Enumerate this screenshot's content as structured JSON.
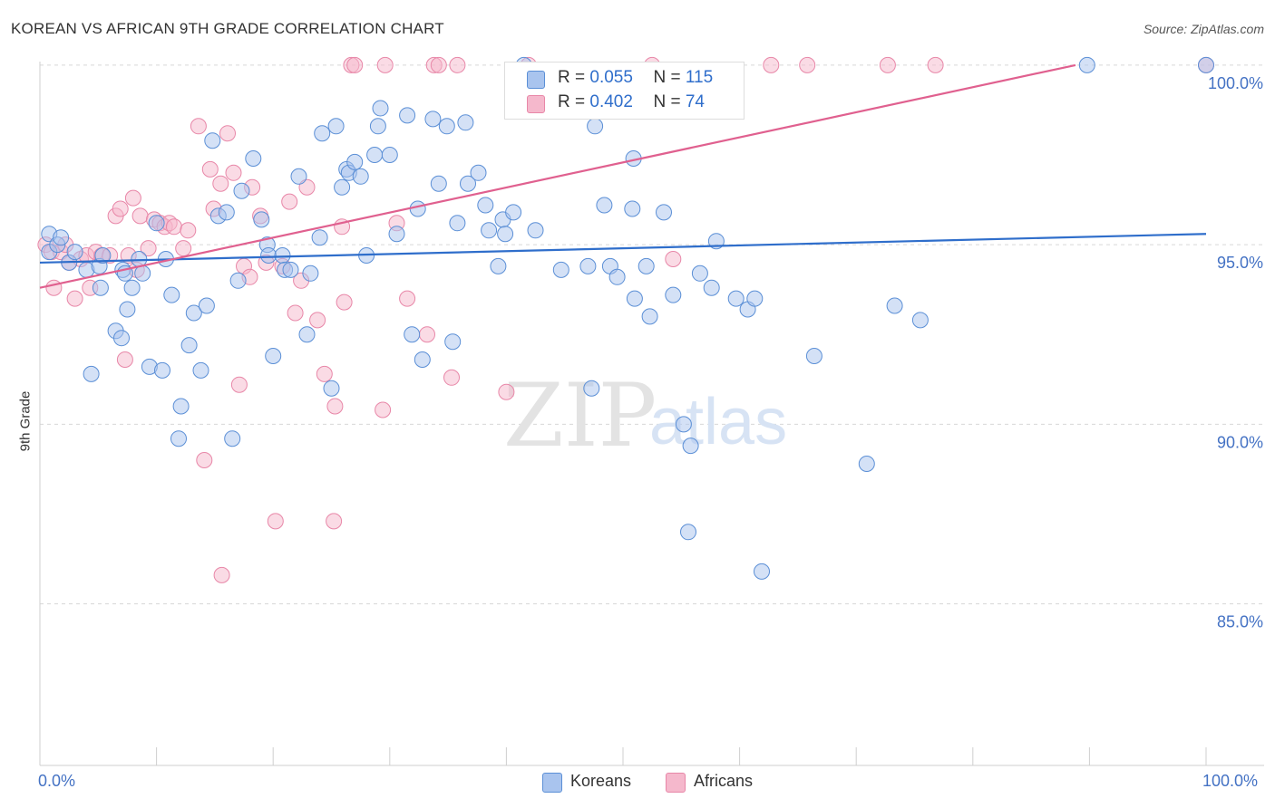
{
  "title": "KOREAN VS AFRICAN 9TH GRADE CORRELATION CHART",
  "source": "Source: ZipAtlas.com",
  "watermark": {
    "zip": "ZIP",
    "atlas": "atlas"
  },
  "legend": {
    "rows": [
      {
        "r_label": "R = ",
        "r_value": "0.055",
        "n_label": "N = ",
        "n_value": "115"
      },
      {
        "r_label": "R = ",
        "r_value": "0.402",
        "n_label": "N = ",
        "n_value": "74"
      }
    ]
  },
  "bottom_legend": [
    "Koreans",
    "Africans"
  ],
  "colors": {
    "koreans_fill": "#a9c4ee",
    "koreans_stroke": "#5b8fd6",
    "koreans_line": "#2f6ecb",
    "africans_fill": "#f5b8cc",
    "africans_stroke": "#e887a8",
    "africans_line": "#e0608f",
    "axis_text": "#4472c4",
    "grid": "#d8d8d8"
  },
  "chart_data": {
    "type": "scatter",
    "title": "KOREAN VS AFRICAN 9TH GRADE CORRELATION CHART",
    "xlabel": "",
    "ylabel": "9th Grade",
    "xlim": [
      0,
      100
    ],
    "ylim": [
      80.5,
      100.3
    ],
    "x_tick_labels": [
      "0.0%",
      "100.0%"
    ],
    "y_ticks": [
      85,
      90,
      95,
      100
    ],
    "y_tick_labels": [
      "85.0%",
      "90.0%",
      "95.0%",
      "100.0%"
    ],
    "grid": true,
    "legend_position": "top-center",
    "series": [
      {
        "name": "Koreans",
        "R": 0.055,
        "N": 115,
        "trend": {
          "x": [
            0,
            100
          ],
          "y": [
            94.5,
            95.3
          ]
        },
        "points": [
          [
            0.8,
            95.3
          ],
          [
            0.8,
            94.8
          ],
          [
            1.5,
            95.0
          ],
          [
            1.8,
            95.2
          ],
          [
            2.5,
            94.5
          ],
          [
            3.0,
            94.8
          ],
          [
            4.0,
            94.3
          ],
          [
            4.4,
            91.4
          ],
          [
            5.1,
            94.4
          ],
          [
            5.2,
            93.8
          ],
          [
            5.4,
            94.7
          ],
          [
            6.5,
            92.6
          ],
          [
            7.0,
            92.4
          ],
          [
            7.1,
            94.3
          ],
          [
            7.3,
            94.2
          ],
          [
            7.5,
            93.2
          ],
          [
            7.9,
            93.8
          ],
          [
            8.5,
            94.6
          ],
          [
            8.8,
            94.2
          ],
          [
            9.4,
            91.6
          ],
          [
            10.0,
            95.6
          ],
          [
            10.5,
            91.5
          ],
          [
            10.8,
            94.6
          ],
          [
            11.3,
            93.6
          ],
          [
            11.9,
            89.6
          ],
          [
            12.1,
            90.5
          ],
          [
            12.8,
            92.2
          ],
          [
            13.2,
            93.1
          ],
          [
            13.8,
            91.5
          ],
          [
            14.3,
            93.3
          ],
          [
            14.8,
            97.9
          ],
          [
            15.3,
            95.8
          ],
          [
            16.0,
            95.9
          ],
          [
            16.5,
            89.6
          ],
          [
            17.0,
            94.0
          ],
          [
            17.3,
            96.5
          ],
          [
            18.3,
            97.4
          ],
          [
            19.0,
            95.7
          ],
          [
            19.5,
            95.0
          ],
          [
            19.6,
            94.7
          ],
          [
            20.0,
            91.9
          ],
          [
            20.8,
            94.7
          ],
          [
            21.0,
            94.3
          ],
          [
            21.5,
            94.3
          ],
          [
            22.2,
            96.9
          ],
          [
            22.9,
            92.5
          ],
          [
            23.2,
            94.2
          ],
          [
            24.0,
            95.2
          ],
          [
            24.2,
            98.1
          ],
          [
            25.0,
            91.0
          ],
          [
            25.4,
            98.3
          ],
          [
            25.9,
            96.6
          ],
          [
            26.3,
            97.1
          ],
          [
            26.5,
            97.0
          ],
          [
            27.0,
            97.3
          ],
          [
            27.5,
            96.9
          ],
          [
            28.0,
            94.7
          ],
          [
            28.7,
            97.5
          ],
          [
            29.0,
            98.3
          ],
          [
            29.2,
            98.8
          ],
          [
            30.0,
            97.5
          ],
          [
            30.6,
            95.3
          ],
          [
            31.5,
            98.6
          ],
          [
            31.9,
            92.5
          ],
          [
            32.4,
            96.0
          ],
          [
            32.8,
            91.8
          ],
          [
            33.7,
            98.5
          ],
          [
            34.2,
            96.7
          ],
          [
            34.9,
            98.3
          ],
          [
            35.4,
            92.3
          ],
          [
            35.8,
            95.6
          ],
          [
            36.5,
            98.4
          ],
          [
            36.7,
            96.7
          ],
          [
            37.6,
            97.0
          ],
          [
            38.2,
            96.1
          ],
          [
            38.5,
            95.4
          ],
          [
            39.3,
            94.4
          ],
          [
            39.7,
            95.7
          ],
          [
            39.9,
            95.3
          ],
          [
            40.6,
            95.9
          ],
          [
            41.5,
            100.0
          ],
          [
            42.2,
            98.9
          ],
          [
            42.5,
            95.4
          ],
          [
            44.7,
            94.3
          ],
          [
            47.0,
            94.4
          ],
          [
            47.3,
            91.0
          ],
          [
            47.6,
            98.3
          ],
          [
            48.4,
            96.1
          ],
          [
            48.9,
            94.4
          ],
          [
            49.5,
            94.1
          ],
          [
            50.8,
            96.0
          ],
          [
            50.9,
            97.4
          ],
          [
            51.0,
            93.5
          ],
          [
            52.0,
            94.4
          ],
          [
            52.3,
            93.0
          ],
          [
            53.5,
            95.9
          ],
          [
            54.3,
            93.6
          ],
          [
            55.2,
            90.0
          ],
          [
            55.6,
            87.0
          ],
          [
            55.8,
            89.4
          ],
          [
            56.6,
            94.2
          ],
          [
            57.6,
            93.8
          ],
          [
            58.0,
            95.1
          ],
          [
            59.7,
            93.5
          ],
          [
            60.7,
            93.2
          ],
          [
            61.3,
            93.5
          ],
          [
            61.9,
            85.9
          ],
          [
            66.4,
            91.9
          ],
          [
            70.9,
            88.9
          ],
          [
            73.3,
            93.3
          ],
          [
            75.5,
            92.9
          ],
          [
            89.8,
            100.0
          ],
          [
            100.0,
            100.0
          ]
        ]
      },
      {
        "name": "Africans",
        "R": 0.402,
        "N": 74,
        "trend": {
          "x": [
            0,
            88.8
          ],
          "y": [
            93.8,
            100.0
          ]
        },
        "points": [
          [
            0.5,
            95.0
          ],
          [
            1.0,
            94.8
          ],
          [
            1.2,
            93.8
          ],
          [
            1.8,
            94.8
          ],
          [
            2.2,
            95.0
          ],
          [
            2.5,
            94.5
          ],
          [
            3.0,
            93.5
          ],
          [
            3.5,
            94.6
          ],
          [
            4.0,
            94.7
          ],
          [
            4.3,
            93.8
          ],
          [
            4.8,
            94.8
          ],
          [
            5.3,
            94.7
          ],
          [
            6.0,
            94.7
          ],
          [
            6.5,
            95.8
          ],
          [
            6.9,
            96.0
          ],
          [
            7.3,
            91.8
          ],
          [
            7.6,
            94.7
          ],
          [
            8.0,
            96.3
          ],
          [
            8.3,
            94.3
          ],
          [
            8.6,
            95.8
          ],
          [
            9.3,
            94.9
          ],
          [
            9.8,
            95.7
          ],
          [
            10.3,
            95.6
          ],
          [
            10.7,
            95.5
          ],
          [
            11.1,
            95.6
          ],
          [
            11.5,
            95.5
          ],
          [
            12.3,
            94.9
          ],
          [
            12.7,
            95.4
          ],
          [
            13.6,
            98.3
          ],
          [
            14.1,
            89.0
          ],
          [
            14.6,
            97.1
          ],
          [
            14.9,
            96.0
          ],
          [
            15.5,
            96.7
          ],
          [
            15.6,
            85.8
          ],
          [
            16.1,
            98.1
          ],
          [
            16.6,
            97.0
          ],
          [
            17.1,
            91.1
          ],
          [
            17.5,
            94.4
          ],
          [
            18.0,
            94.1
          ],
          [
            18.2,
            96.6
          ],
          [
            18.9,
            95.8
          ],
          [
            19.4,
            94.5
          ],
          [
            20.2,
            87.3
          ],
          [
            20.8,
            94.4
          ],
          [
            21.4,
            96.2
          ],
          [
            21.9,
            93.1
          ],
          [
            22.4,
            94.0
          ],
          [
            22.9,
            96.6
          ],
          [
            23.8,
            92.9
          ],
          [
            24.4,
            91.4
          ],
          [
            25.2,
            87.3
          ],
          [
            25.3,
            90.5
          ],
          [
            25.9,
            95.5
          ],
          [
            26.1,
            93.4
          ],
          [
            26.7,
            100.0
          ],
          [
            27.0,
            100.0
          ],
          [
            29.4,
            90.4
          ],
          [
            29.6,
            100.0
          ],
          [
            30.6,
            95.6
          ],
          [
            31.5,
            93.5
          ],
          [
            33.2,
            92.5
          ],
          [
            33.8,
            100.0
          ],
          [
            34.2,
            100.0
          ],
          [
            35.3,
            91.3
          ],
          [
            35.8,
            100.0
          ],
          [
            40.0,
            90.9
          ],
          [
            41.9,
            100.0
          ],
          [
            52.5,
            100.0
          ],
          [
            54.3,
            94.6
          ],
          [
            62.7,
            100.0
          ],
          [
            65.8,
            100.0
          ],
          [
            72.7,
            100.0
          ],
          [
            76.8,
            100.0
          ],
          [
            100.0,
            100.0
          ]
        ]
      }
    ]
  }
}
